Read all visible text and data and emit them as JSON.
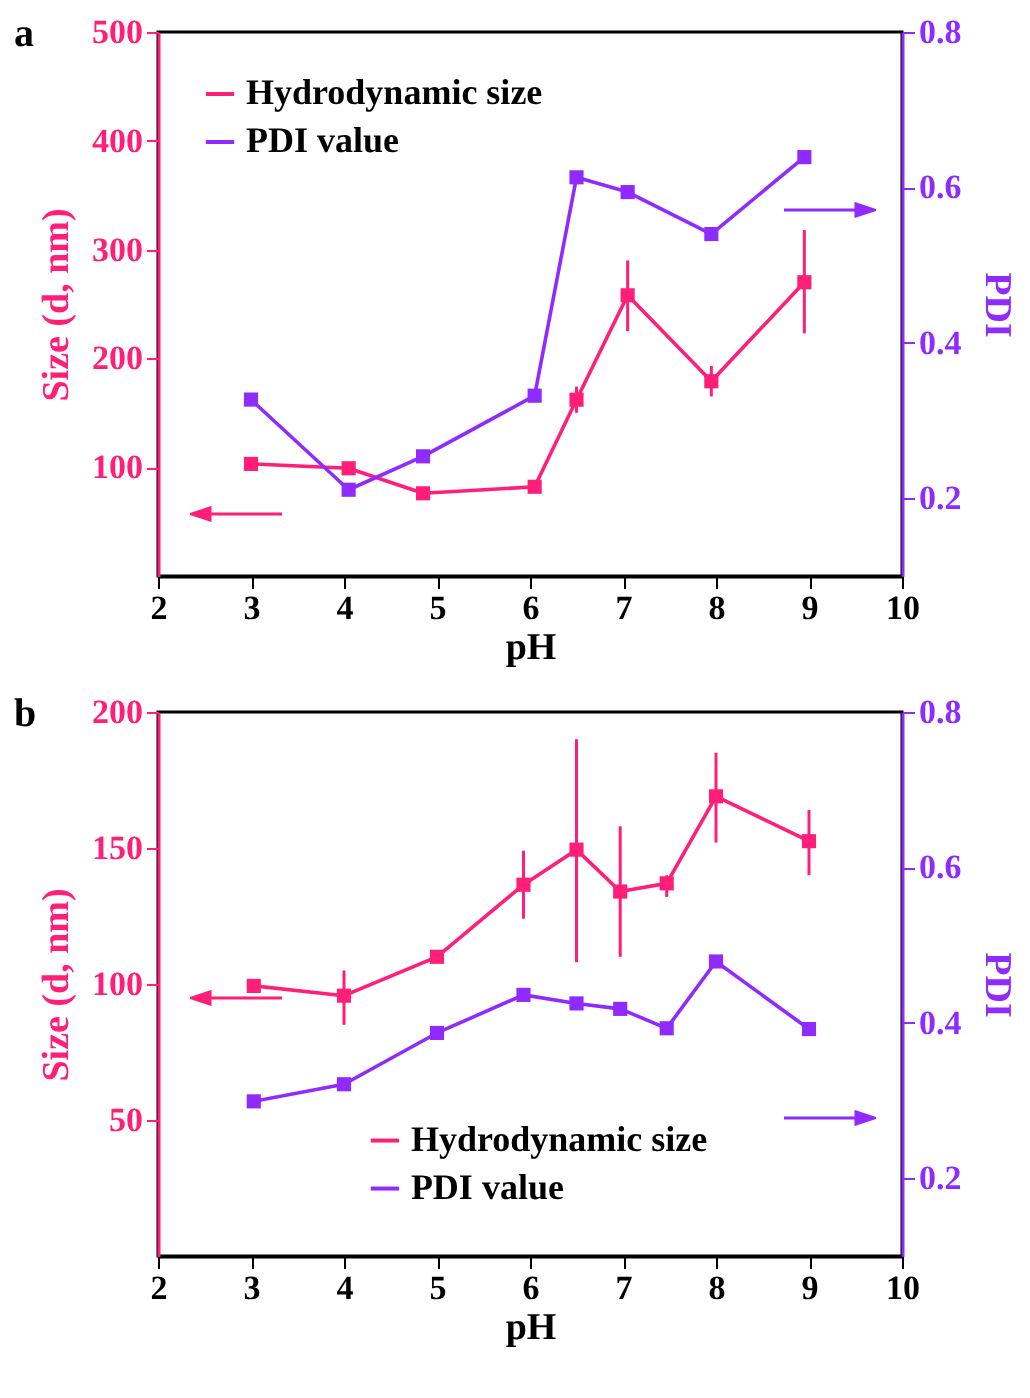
{
  "chart_data": [
    {
      "type": "line",
      "title": "a",
      "xlabel": "pH",
      "ylabel": "Size (d, nm)",
      "y2label": "PDI",
      "x": [
        3,
        4.05,
        4.85,
        6.05,
        6.5,
        7.05,
        7.95,
        8.95
      ],
      "series": [
        {
          "name": "Hydrodynamic size",
          "color": "#ff1f78",
          "values": [
            103,
            99,
            76,
            82,
            162,
            258,
            179,
            270
          ],
          "errors": [
            null,
            null,
            null,
            null,
            [
              150,
              174
            ],
            [
              225,
              290
            ],
            [
              165,
              193
            ],
            [
              223,
              318
            ]
          ]
        },
        {
          "name": "PDI value",
          "color": "#8f2bff",
          "axis": "y2",
          "values": [
            0.327,
            0.211,
            0.254,
            0.332,
            0.613,
            0.594,
            0.54,
            0.639
          ]
        }
      ],
      "xlim": [
        2,
        10
      ],
      "xticks": [
        2,
        3,
        4,
        5,
        6,
        7,
        8,
        9,
        10
      ],
      "ylim": [
        0,
        500
      ],
      "yticks": [
        100,
        200,
        300,
        400,
        500
      ],
      "y2lim": [
        0.1,
        0.8
      ],
      "y2ticks": [
        0.2,
        0.4,
        0.6,
        0.8
      ],
      "grid": false,
      "legend": "top left",
      "marker": "square",
      "line_style": "solid"
    },
    {
      "type": "line",
      "title": "b",
      "xlabel": "pH",
      "ylabel": "Size (d, nm)",
      "y2label": "PDI",
      "x": [
        3.03,
        4,
        5,
        5.93,
        6.5,
        6.97,
        7.47,
        8,
        9
      ],
      "series": [
        {
          "name": "Hydrodynamic size",
          "color": "#ff1f78",
          "values": [
            99.3,
            95.7,
            110,
            136.5,
            149.4,
            134,
            137,
            169,
            152.5
          ],
          "errors": [
            null,
            [
              85,
              105
            ],
            null,
            [
              124,
              149
            ],
            [
              108,
              190
            ],
            [
              110,
              158
            ],
            [
              132,
              140
            ],
            [
              152,
              185
            ],
            [
              140,
              164
            ]
          ]
        },
        {
          "name": "PDI value",
          "color": "#8f2bff",
          "axis": "y2",
          "values": [
            0.299,
            0.321,
            0.387,
            0.436,
            0.425,
            0.418,
            0.393,
            0.479,
            0.392
          ]
        }
      ],
      "xlim": [
        2,
        10
      ],
      "xticks": [
        2,
        3,
        4,
        5,
        6,
        7,
        8,
        9,
        10
      ],
      "ylim": [
        0,
        200
      ],
      "yticks": [
        50,
        100,
        150,
        200
      ],
      "y2lim": [
        0.1,
        0.8
      ],
      "y2ticks": [
        0.2,
        0.4,
        0.6,
        0.8
      ],
      "grid": false,
      "legend": "bottom",
      "marker": "square",
      "line_style": "solid"
    }
  ]
}
